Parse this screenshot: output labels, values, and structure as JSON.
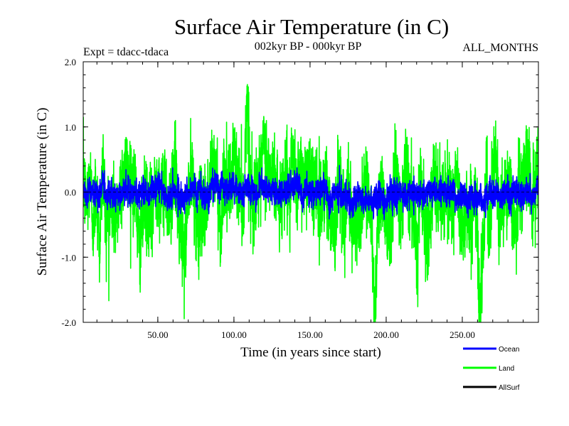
{
  "chart_data": {
    "type": "line",
    "title": "Surface Air Temperature (in C)",
    "subtitle_left": "Expt = tdacc-tdaca",
    "subtitle_center": "002kyr BP - 000kyr BP",
    "subtitle_right": "ALL_MONTHS",
    "xlabel": "Time (in years since start)",
    "ylabel": "Surface Air Temperature (in C)",
    "xlim": [
      1,
      300
    ],
    "ylim": [
      -2.0,
      2.0
    ],
    "x_ticks": [
      50,
      100,
      150,
      200,
      250
    ],
    "x_tick_labels": [
      "50.00",
      "100.00",
      "150.00",
      "200.00",
      "250.00"
    ],
    "y_ticks": [
      -2.0,
      -1.0,
      0.0,
      1.0,
      2.0
    ],
    "y_tick_labels": [
      "-2.0",
      "-1.0",
      "0.0",
      "1.0",
      "2.0"
    ],
    "zero_line": true,
    "legend_position": "bottom-right",
    "series": [
      {
        "name": "Land",
        "color": "#00ff00",
        "sampling": "monthly",
        "approx_std": 0.45,
        "approx_min": -2.0,
        "approx_max": 1.65,
        "values": [
          0.23,
          -0.24,
          0.31,
          -0.47,
          0.12,
          -0.85,
          0.48,
          -0.52,
          -0.26,
          -0.23,
          -0.48,
          -0.02,
          0.22,
          0.36,
          0.3,
          0.19,
          0.01,
          -0.9,
          -0.53,
          -0.08,
          -0.25,
          -0.45,
          0.14,
          0.2,
          -0.22,
          0.3,
          -0.48,
          -0.02,
          0.44,
          -0.38,
          -0.74,
          -1.02,
          -0.04,
          0.24,
          -0.06,
          -0.63,
          -0.16,
          -0.31,
          -0.14,
          0.24,
          0.41,
          0.17,
          -0.56,
          0.33,
          -0.02,
          0.06,
          0.67,
          0.13,
          0.18,
          -0.32,
          1.65,
          0.1,
          -0.2,
          0.24,
          -0.02,
          0.74,
          0.47,
          0.22,
          0.23,
          0.09,
          -0.23,
          0.08,
          0.35,
          -0.26,
          0.47,
          0.07,
          0.25,
          0.24,
          0.29,
          0.37,
          -0.09,
          0.32,
          -0.32,
          -0.04,
          0.28,
          -0.25,
          -0.38,
          -0.61,
          0.38,
          0.1,
          -0.6,
          0.33,
          -0.56,
          -0.63,
          -0.54,
          -0.26,
          0.26,
          -0.02,
          -0.43,
          -2.0,
          -0.42,
          0.08,
          -0.21,
          -0.51,
          -0.39,
          0.34,
          0.21,
          -0.31,
          0.32,
          0.28,
          -0.28,
          -0.14,
          -0.86,
          0.31,
          -0.41,
          -0.53,
          -0.51,
          0.17,
          -0.14,
          0.0,
          -0.23,
          -0.06,
          0.01,
          -0.26,
          0.3,
          -0.39,
          -0.47,
          -0.2,
          -0.48,
          -0.24,
          -0.05,
          -1.97,
          -0.86,
          0.32,
          -0.91,
          0.27,
          0.58,
          -0.59,
          0.08,
          0.0,
          0.02,
          -0.22,
          -0.59,
          0.02,
          0.03,
          0.37,
          0.37,
          -0.2,
          0.16,
          0.14
        ]
      },
      {
        "name": "Ocean",
        "color": "#0000ff",
        "sampling": "monthly",
        "approx_std": 0.18,
        "approx_min": -0.55,
        "approx_max": 0.65,
        "values": [
          0.06,
          -0.05,
          0.04,
          -0.03,
          -0.1,
          -0.05,
          0.18,
          -0.12,
          0.02,
          0.01,
          -0.09,
          -0.02,
          -0.02,
          -0.0,
          0.04,
          -0.05,
          0.0,
          -0.07,
          0.05,
          0.03,
          -0.09,
          0.04,
          0.03,
          0.09,
          0.08,
          -0.04,
          -0.12,
          -0.08,
          0.02,
          -0.0,
          -0.06,
          -0.09,
          -0.06,
          -0.0,
          0.08,
          -0.06,
          0.11,
          -0.07,
          -0.05,
          -0.02,
          0.16,
          0.11,
          0.06,
          0.14,
          -0.0,
          0.06,
          0.05,
          0.09,
          0.02,
          -0.06,
          0.07,
          0.15,
          0.02,
          -0.01,
          -0.06,
          0.13,
          0.07,
          0.01,
          -0.01,
          0.05,
          -0.06,
          -0.02,
          -0.01,
          0.03,
          0.07,
          0.03,
          0.14,
          0.01,
          -0.12,
          0.08,
          0.0,
          -0.01,
          -0.01,
          0.01,
          0.11,
          0.06,
          -0.14,
          -0.11,
          0.01,
          0.02,
          -0.03,
          -0.08,
          -0.08,
          -0.25,
          -0.13,
          -0.06,
          -0.06,
          -0.14,
          -0.1,
          -0.14,
          -0.15,
          -0.03,
          -0.04,
          -0.18,
          -0.11,
          0.01,
          -0.02,
          -0.03,
          0.0,
          0.04,
          -0.05,
          0.01,
          -0.01,
          -0.06,
          -0.07,
          -0.06,
          -0.06,
          -0.0,
          -0.02,
          0.01,
          0.03,
          -0.0,
          0.02,
          -0.03,
          -0.0,
          -0.06,
          -0.12,
          -0.05,
          -0.06,
          -0.12,
          -0.09,
          -0.11,
          -0.09,
          -0.02,
          -0.18,
          -0.05,
          -0.01,
          -0.07,
          0.04,
          -0.08,
          -0.08,
          -0.04,
          -0.06,
          0.06,
          -0.01,
          -0.03,
          -0.05,
          -0.02,
          -0.02,
          -0.07,
          0.02,
          0.11
        ]
      },
      {
        "name": "AllSurf",
        "color": "#000000",
        "sampling": "monthly",
        "note": "hidden beneath the Ocean curve",
        "values": []
      }
    ]
  }
}
